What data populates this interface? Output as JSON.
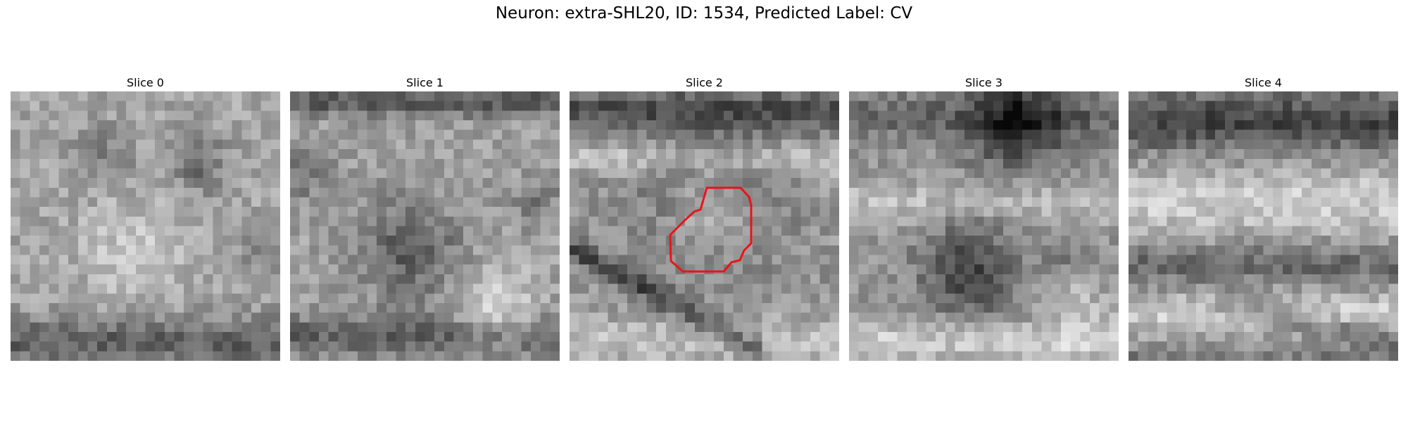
{
  "figure": {
    "title": "Neuron: extra-SHL20, ID: 1534, Predicted Label: CV"
  },
  "panels": [
    {
      "label": "Slice 0"
    },
    {
      "label": "Slice 1"
    },
    {
      "label": "Slice 2"
    },
    {
      "label": "Slice 3"
    },
    {
      "label": "Slice 4"
    }
  ],
  "colors": {
    "contour": "#e8141a",
    "colormap": "gray"
  }
}
